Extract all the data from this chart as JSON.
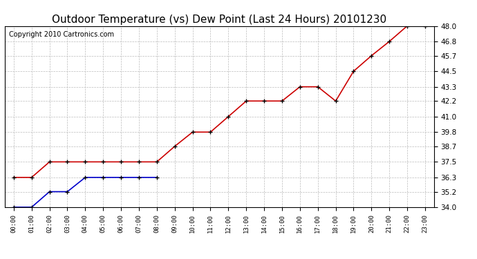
{
  "title": "Outdoor Temperature (vs) Dew Point (Last 24 Hours) 20101230",
  "copyright": "Copyright 2010 Cartronics.com",
  "x_labels": [
    "00:00",
    "01:00",
    "02:00",
    "03:00",
    "04:00",
    "05:00",
    "06:00",
    "07:00",
    "08:00",
    "09:00",
    "10:00",
    "11:00",
    "12:00",
    "13:00",
    "14:00",
    "15:00",
    "16:00",
    "17:00",
    "18:00",
    "19:00",
    "20:00",
    "21:00",
    "22:00",
    "23:00"
  ],
  "temp_data": [
    36.3,
    36.3,
    37.5,
    37.5,
    37.5,
    37.5,
    37.5,
    37.5,
    37.5,
    38.7,
    39.8,
    39.8,
    41.0,
    42.2,
    42.2,
    42.2,
    43.3,
    43.3,
    42.2,
    44.5,
    45.7,
    46.8,
    48.0,
    48.0
  ],
  "dew_data": [
    34.0,
    34.0,
    35.2,
    35.2,
    36.3,
    36.3,
    36.3,
    36.3,
    36.3,
    null,
    null,
    null,
    null,
    null,
    null,
    null,
    null,
    null,
    null,
    null,
    null,
    null,
    null,
    null
  ],
  "ylim": [
    34.0,
    48.0
  ],
  "yticks": [
    34.0,
    35.2,
    36.3,
    37.5,
    38.7,
    39.8,
    41.0,
    42.2,
    43.3,
    44.5,
    45.7,
    46.8,
    48.0
  ],
  "temp_color": "#cc0000",
  "dew_color": "#0000cc",
  "bg_color": "#ffffff",
  "grid_color": "#bbbbbb",
  "title_color": "#000000",
  "title_fontsize": 11,
  "copyright_fontsize": 7,
  "marker": "+",
  "marker_color": "#000000",
  "marker_size": 5,
  "line_width": 1.2
}
